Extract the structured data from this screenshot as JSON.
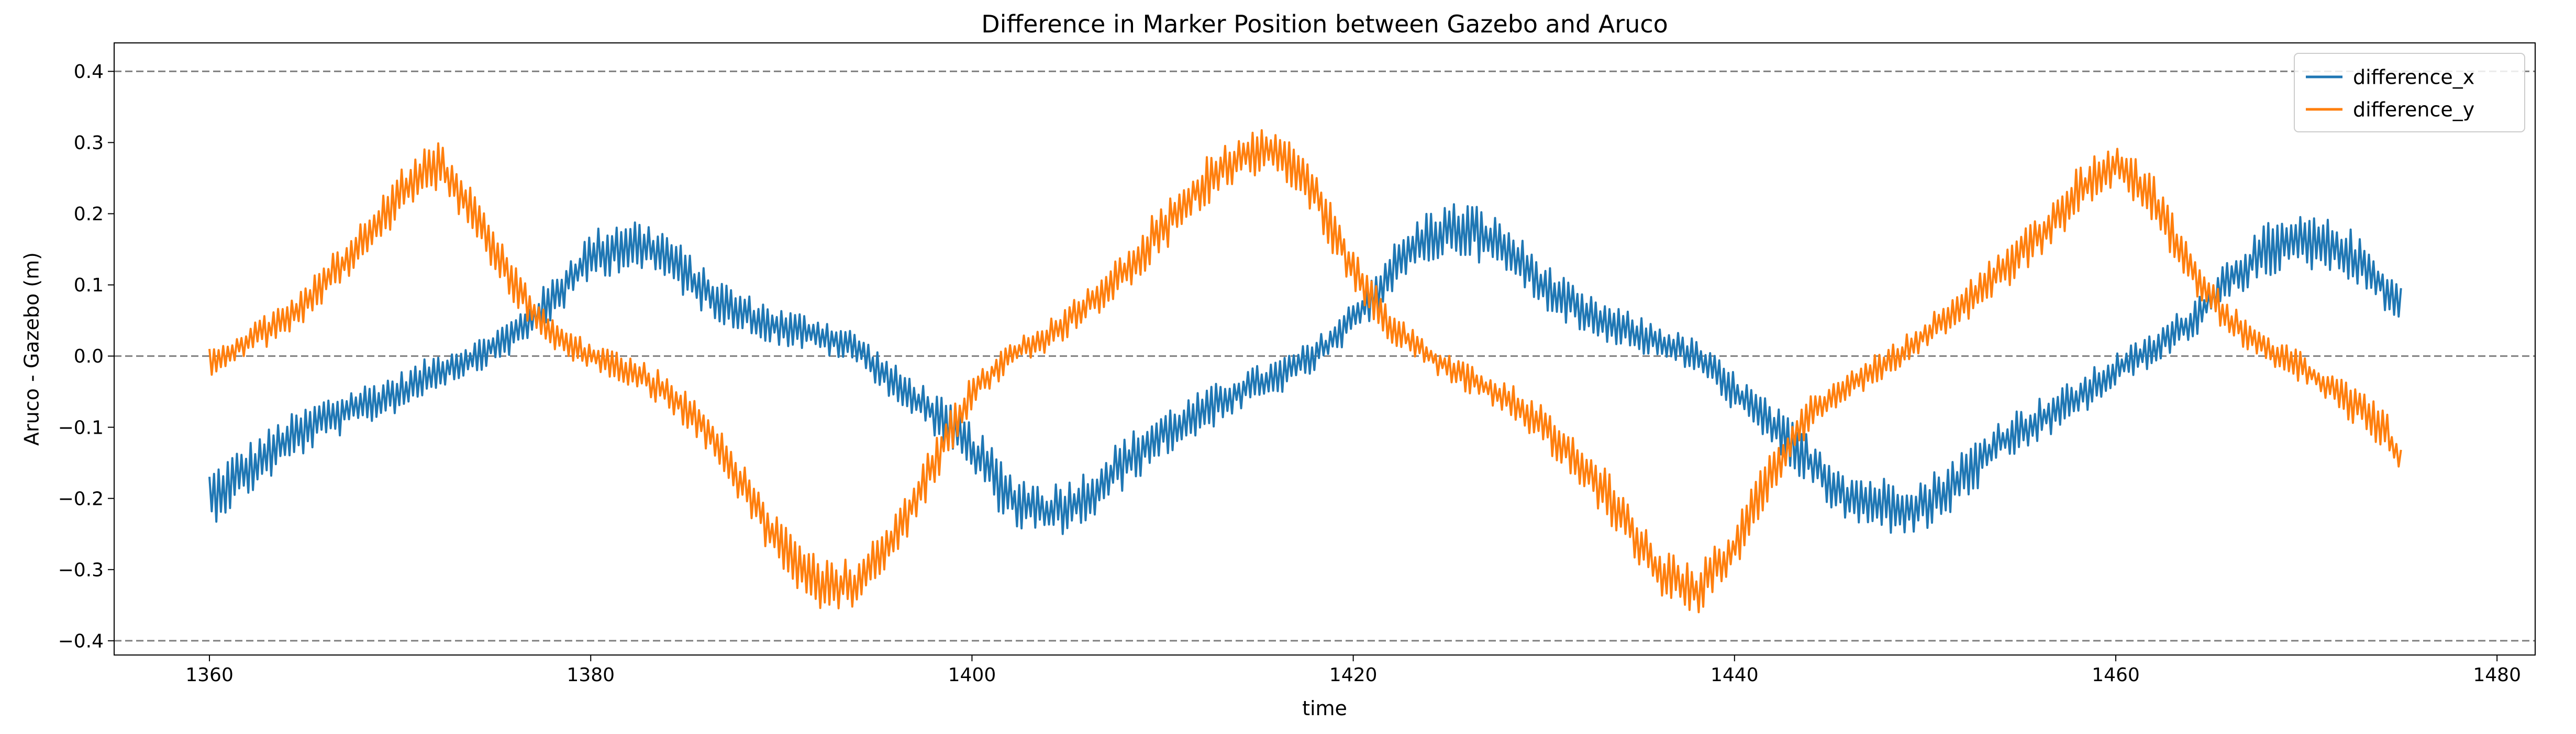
{
  "chart_data": {
    "type": "line",
    "title": "Difference in Marker Position between Gazebo and Aruco",
    "xlabel": "time",
    "ylabel": "Aruco - Gazebo (m)",
    "xlim": [
      1355,
      1482
    ],
    "ylim": [
      -0.42,
      0.44
    ],
    "xticks": [
      1360,
      1380,
      1400,
      1420,
      1440,
      1460,
      1480
    ],
    "yticks": [
      -0.4,
      -0.3,
      -0.2,
      -0.1,
      0.0,
      0.1,
      0.2,
      0.3,
      0.4
    ],
    "ytick_labels": [
      "−0.4",
      "−0.3",
      "−0.2",
      "−0.1",
      "0.0",
      "0.1",
      "0.2",
      "0.3",
      "0.4"
    ],
    "reference_lines": [
      0.4,
      0.0,
      -0.4
    ],
    "reference_line_color": "#808080",
    "grid": false,
    "legend_position": "top-right",
    "series": [
      {
        "name": "difference_x",
        "color": "#1f77b4",
        "noise_amplitude": 0.04,
        "x": [
          1360,
          1362,
          1364,
          1366,
          1368,
          1370,
          1372,
          1374,
          1376,
          1378,
          1380,
          1382,
          1384,
          1386,
          1388,
          1390,
          1392,
          1394,
          1396,
          1398,
          1400,
          1402,
          1404,
          1406,
          1408,
          1410,
          1412,
          1414,
          1416,
          1418,
          1420,
          1422,
          1424,
          1426,
          1428,
          1430,
          1432,
          1434,
          1436,
          1438,
          1440,
          1442,
          1444,
          1446,
          1448,
          1450,
          1452,
          1454,
          1456,
          1458,
          1460,
          1462,
          1464,
          1466,
          1468,
          1470,
          1472,
          1474,
          1475
        ],
        "y": [
          -0.2,
          -0.16,
          -0.12,
          -0.09,
          -0.07,
          -0.05,
          -0.02,
          0.0,
          0.03,
          0.08,
          0.14,
          0.16,
          0.14,
          0.09,
          0.06,
          0.04,
          0.03,
          0.01,
          -0.04,
          -0.08,
          -0.13,
          -0.2,
          -0.22,
          -0.2,
          -0.15,
          -0.11,
          -0.08,
          -0.05,
          -0.03,
          0.0,
          0.05,
          0.12,
          0.17,
          0.18,
          0.15,
          0.1,
          0.06,
          0.04,
          0.02,
          0.0,
          -0.05,
          -0.1,
          -0.15,
          -0.2,
          -0.21,
          -0.21,
          -0.17,
          -0.12,
          -0.09,
          -0.06,
          -0.02,
          0.01,
          0.05,
          0.11,
          0.15,
          0.16,
          0.15,
          0.1,
          0.07
        ]
      },
      {
        "name": "difference_y",
        "color": "#ff7f0e",
        "noise_amplitude": 0.035,
        "x": [
          1360,
          1362,
          1364,
          1366,
          1368,
          1370,
          1372,
          1374,
          1376,
          1378,
          1380,
          1382,
          1384,
          1386,
          1388,
          1390,
          1392,
          1394,
          1396,
          1398,
          1400,
          1402,
          1404,
          1406,
          1408,
          1410,
          1412,
          1414,
          1416,
          1418,
          1420,
          1422,
          1424,
          1426,
          1428,
          1430,
          1432,
          1434,
          1436,
          1438,
          1440,
          1442,
          1444,
          1446,
          1448,
          1450,
          1452,
          1454,
          1456,
          1458,
          1460,
          1462,
          1464,
          1466,
          1468,
          1470,
          1472,
          1474,
          1475
        ],
        "y": [
          -0.01,
          0.02,
          0.05,
          0.1,
          0.16,
          0.23,
          0.27,
          0.2,
          0.1,
          0.03,
          0.0,
          -0.02,
          -0.05,
          -0.1,
          -0.18,
          -0.27,
          -0.32,
          -0.32,
          -0.25,
          -0.15,
          -0.05,
          0.0,
          0.03,
          0.07,
          0.12,
          0.18,
          0.24,
          0.28,
          0.29,
          0.23,
          0.12,
          0.04,
          0.0,
          -0.03,
          -0.06,
          -0.1,
          -0.15,
          -0.22,
          -0.3,
          -0.33,
          -0.27,
          -0.16,
          -0.08,
          -0.04,
          -0.01,
          0.03,
          0.07,
          0.12,
          0.17,
          0.23,
          0.27,
          0.22,
          0.12,
          0.05,
          0.01,
          -0.02,
          -0.06,
          -0.1,
          -0.15
        ]
      }
    ]
  }
}
